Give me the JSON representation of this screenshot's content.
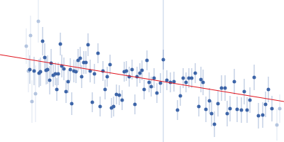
{
  "chart_data": {
    "type": "scatter",
    "xlim": [
      0,
      400
    ],
    "ylim": [
      0,
      200
    ],
    "tick_labels": false,
    "grid": false,
    "series": [
      {
        "type": "line",
        "color": "#c9d6ea",
        "x": [
          230,
          230
        ],
        "values": [
          0,
          200
        ]
      },
      {
        "type": "scatter",
        "color": "#b3c4df",
        "marker": "circle",
        "x": [
          37,
          40,
          43,
          45,
          50,
          54,
          390,
          394
        ],
        "values": [
          135,
          100,
          150,
          57,
          68,
          170,
          24,
          47
        ],
        "error": [
          25,
          30,
          28,
          30,
          40,
          30,
          22,
          20
        ]
      },
      {
        "type": "scatter",
        "color": "#3d65a8",
        "marker": "circle",
        "x": [
          42,
          48,
          55,
          57,
          60,
          63,
          65,
          67,
          70,
          72,
          75,
          78,
          80,
          82,
          85,
          87,
          90,
          93,
          96,
          99,
          101,
          104,
          107,
          110,
          113,
          115,
          118,
          121,
          124,
          127,
          130,
          133,
          138,
          141,
          145,
          148,
          151,
          155,
          157,
          160,
          164,
          168,
          172,
          175,
          178,
          182,
          186,
          190,
          193,
          197,
          200,
          203,
          207,
          210,
          213,
          217,
          221,
          226,
          230,
          235,
          240,
          245,
          250,
          254,
          258,
          262,
          266,
          270,
          275,
          280,
          283,
          286,
          290,
          295,
          298,
          302,
          307,
          312,
          317,
          320,
          324,
          330,
          334,
          340,
          344,
          348,
          352,
          358,
          364,
          370,
          374,
          378,
          383
        ],
        "values": [
          102,
          100,
          97,
          99,
          142,
          119,
          101,
          102,
          87,
          111,
          94,
          96,
          74,
          96,
          138,
          107,
          103,
          71,
          85,
          102,
          54,
          100,
          99,
          115,
          118,
          92,
          112,
          112,
          137,
          100,
          56,
          96,
          125,
          50,
          100,
          74,
          92,
          109,
          48,
          50,
          67,
          66,
          59,
          99,
          100,
          92,
          102,
          53,
          92,
          97,
          101,
          74,
          115,
          84,
          78,
          90,
          69,
          83,
          116,
          87,
          84,
          85,
          45,
          65,
          90,
          84,
          90,
          90,
          97,
          50,
          88,
          84,
          46,
          58,
          40,
          25,
          54,
          76,
          76,
          40,
          47,
          85,
          46,
          45,
          71,
          45,
          59,
          91,
          37,
          38,
          53,
          74,
          47
        ],
        "error": [
          20,
          20,
          20,
          20,
          20,
          20,
          20,
          20,
          20,
          20,
          16,
          16,
          16,
          16,
          16,
          16,
          16,
          16,
          16,
          16,
          16,
          16,
          16,
          16,
          16,
          16,
          16,
          16,
          16,
          16,
          14,
          14,
          14,
          14,
          14,
          14,
          14,
          14,
          14,
          14,
          14,
          14,
          14,
          14,
          14,
          14,
          14,
          14,
          14,
          14,
          14,
          14,
          14,
          14,
          14,
          14,
          14,
          14,
          14,
          14,
          14,
          14,
          14,
          14,
          14,
          14,
          14,
          14,
          14,
          14,
          18,
          18,
          18,
          18,
          18,
          18,
          18,
          18,
          18,
          18,
          18,
          18,
          18,
          18,
          18,
          18,
          18,
          18,
          18,
          18,
          18,
          18,
          18
        ]
      },
      {
        "type": "line",
        "color": "#e0141e",
        "x": [
          0,
          400
        ],
        "values": [
          123,
          57
        ]
      }
    ]
  }
}
